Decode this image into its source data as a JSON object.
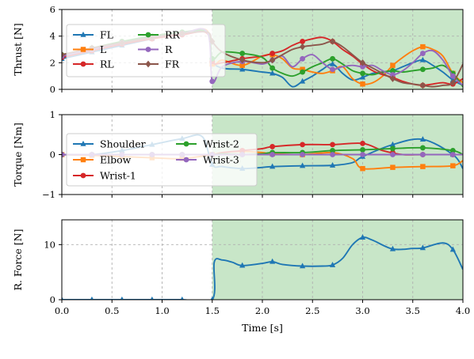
{
  "chart_data": [
    {
      "type": "line",
      "ylabel": "Thrust [N]",
      "xlim": [
        0,
        4
      ],
      "ylim": [
        0,
        6
      ],
      "yticks": [
        0,
        2,
        4,
        6
      ],
      "highlight_x": [
        1.5,
        4.0
      ],
      "highlight_color": "#c8e6c8",
      "legend_position": "upper-left",
      "legend_columns": 2,
      "series": [
        {
          "name": "FL",
          "color": "#1f77b4",
          "marker": "triangle",
          "x": [
            0,
            0.3,
            0.6,
            0.9,
            1.2,
            1.45,
            1.5,
            1.6,
            1.8,
            2.0,
            2.1,
            2.2,
            2.3,
            2.4,
            2.5,
            2.6,
            2.7,
            2.8,
            2.9,
            3.0,
            3.1,
            3.2,
            3.3,
            3.4,
            3.5,
            3.6,
            3.7,
            3.8,
            3.9,
            4.0
          ],
          "y": [
            2.3,
            2.8,
            3.3,
            3.8,
            4.2,
            4.3,
            2.2,
            1.6,
            1.5,
            1.3,
            1.2,
            0.9,
            0.2,
            0.6,
            1.0,
            1.5,
            1.9,
            1.2,
            0.7,
            0.9,
            1.2,
            1.3,
            1.4,
            1.7,
            2.0,
            2.2,
            1.8,
            1.3,
            0.7,
            0.3
          ]
        },
        {
          "name": "L",
          "color": "#ff7f0e",
          "marker": "square",
          "x": [
            0,
            0.3,
            0.6,
            0.9,
            1.2,
            1.45,
            1.5,
            1.6,
            1.8,
            2.0,
            2.1,
            2.2,
            2.3,
            2.4,
            2.5,
            2.6,
            2.7,
            2.8,
            2.9,
            3.0,
            3.1,
            3.2,
            3.3,
            3.4,
            3.5,
            3.6,
            3.7,
            3.8,
            3.9,
            4.0
          ],
          "y": [
            2.5,
            3.0,
            3.5,
            3.9,
            4.2,
            4.4,
            1.9,
            2.2,
            1.8,
            2.5,
            2.6,
            2.3,
            1.6,
            1.5,
            1.3,
            1.2,
            1.4,
            1.7,
            0.8,
            0.4,
            0.5,
            1.0,
            1.8,
            2.4,
            2.9,
            3.2,
            3.0,
            2.5,
            1.2,
            0.5
          ]
        },
        {
          "name": "RL",
          "color": "#d62728",
          "marker": "circle",
          "x": [
            0,
            0.3,
            0.6,
            0.9,
            1.2,
            1.45,
            1.5,
            1.6,
            1.8,
            2.0,
            2.1,
            2.2,
            2.3,
            2.4,
            2.5,
            2.6,
            2.7,
            2.8,
            2.9,
            3.0,
            3.1,
            3.2,
            3.3,
            3.4,
            3.5,
            3.6,
            3.7,
            3.8,
            3.9,
            4.0
          ],
          "y": [
            2.4,
            2.9,
            3.4,
            3.8,
            4.1,
            4.2,
            2.1,
            2.0,
            2.3,
            2.5,
            2.7,
            2.9,
            3.3,
            3.6,
            3.8,
            3.9,
            3.6,
            3.0,
            2.5,
            1.9,
            1.4,
            1.1,
            0.9,
            0.6,
            0.4,
            0.3,
            0.4,
            0.5,
            0.4,
            0.8
          ]
        },
        {
          "name": "RR",
          "color": "#2ca02c",
          "marker": "circle",
          "x": [
            0,
            0.3,
            0.6,
            0.9,
            1.2,
            1.45,
            1.5,
            1.6,
            1.8,
            2.0,
            2.1,
            2.2,
            2.3,
            2.4,
            2.5,
            2.6,
            2.7,
            2.8,
            2.9,
            3.0,
            3.1,
            3.2,
            3.3,
            3.4,
            3.5,
            3.6,
            3.7,
            3.8,
            3.9,
            4.0
          ],
          "y": [
            2.6,
            3.1,
            3.6,
            4.0,
            4.3,
            4.3,
            2.3,
            2.8,
            2.7,
            2.4,
            1.6,
            1.2,
            1.0,
            1.3,
            1.7,
            2.0,
            2.3,
            1.9,
            1.4,
            1.2,
            1.1,
            1.3,
            1.4,
            1.3,
            1.4,
            1.5,
            1.6,
            1.8,
            1.2,
            0.2
          ]
        },
        {
          "name": "R",
          "color": "#9467bd",
          "marker": "circle",
          "x": [
            0,
            0.3,
            0.6,
            0.9,
            1.2,
            1.45,
            1.5,
            1.6,
            1.8,
            2.0,
            2.1,
            2.2,
            2.3,
            2.4,
            2.5,
            2.6,
            2.7,
            2.8,
            2.9,
            3.0,
            3.1,
            3.2,
            3.3,
            3.4,
            3.5,
            3.6,
            3.7,
            3.8,
            3.9,
            4.0
          ],
          "y": [
            2.5,
            3.0,
            3.5,
            3.9,
            4.2,
            4.3,
            0.6,
            1.7,
            2.1,
            1.9,
            2.2,
            2.5,
            1.7,
            2.3,
            2.6,
            2.0,
            1.5,
            1.7,
            1.8,
            1.7,
            1.8,
            1.4,
            1.1,
            1.4,
            2.0,
            2.7,
            2.9,
            2.2,
            1.0,
            0.3
          ]
        },
        {
          "name": "FR",
          "color": "#8c564b",
          "marker": "diamond",
          "x": [
            0,
            0.3,
            0.6,
            0.9,
            1.2,
            1.45,
            1.5,
            1.6,
            1.8,
            2.0,
            2.1,
            2.2,
            2.3,
            2.4,
            2.5,
            2.6,
            2.7,
            2.8,
            2.9,
            3.0,
            3.1,
            3.2,
            3.3,
            3.4,
            3.5,
            3.6,
            3.7,
            3.8,
            3.9,
            4.0
          ],
          "y": [
            2.6,
            3.1,
            3.5,
            3.9,
            4.2,
            4.3,
            3.6,
            2.8,
            2.2,
            2.0,
            2.2,
            2.6,
            3.0,
            3.2,
            3.3,
            3.4,
            3.6,
            3.2,
            2.6,
            2.0,
            1.6,
            1.2,
            0.8,
            0.5,
            0.4,
            0.3,
            0.2,
            0.3,
            0.5,
            1.9
          ]
        }
      ]
    },
    {
      "type": "line",
      "ylabel": "Torque [Nm]",
      "xlim": [
        0,
        4
      ],
      "ylim": [
        -1,
        1
      ],
      "yticks": [
        -1,
        0,
        1
      ],
      "highlight_x": [
        1.5,
        4.0
      ],
      "highlight_color": "#c8e6c8",
      "legend_position": "center-left",
      "legend_columns": 2,
      "series": [
        {
          "name": "Shoulder",
          "color": "#1f77b4",
          "marker": "triangle",
          "x": [
            0,
            0.3,
            0.6,
            0.9,
            1.2,
            1.4,
            1.5,
            1.6,
            1.8,
            2.0,
            2.1,
            2.4,
            2.7,
            2.9,
            3.0,
            3.3,
            3.6,
            3.9,
            4.0
          ],
          "y": [
            0.0,
            0.0,
            0.1,
            0.25,
            0.4,
            0.45,
            -0.25,
            -0.3,
            -0.35,
            -0.32,
            -0.3,
            -0.28,
            -0.27,
            -0.2,
            -0.05,
            0.25,
            0.38,
            0.0,
            -0.35
          ]
        },
        {
          "name": "Elbow",
          "color": "#ff7f0e",
          "marker": "square",
          "x": [
            0,
            0.3,
            0.6,
            0.9,
            1.2,
            1.5,
            1.6,
            1.8,
            2.0,
            2.1,
            2.4,
            2.7,
            2.9,
            3.0,
            3.3,
            3.6,
            3.9,
            4.0
          ],
          "y": [
            0.0,
            -0.02,
            -0.05,
            -0.08,
            -0.1,
            0.0,
            0.05,
            0.08,
            0.05,
            0.02,
            0.0,
            0.05,
            -0.1,
            -0.35,
            -0.32,
            -0.3,
            -0.28,
            -0.15
          ]
        },
        {
          "name": "Wrist-1",
          "color": "#d62728",
          "marker": "circle",
          "x": [
            0,
            0.3,
            0.6,
            0.9,
            1.2,
            1.5,
            1.6,
            1.8,
            2.0,
            2.1,
            2.4,
            2.7,
            3.0,
            3.2,
            3.4,
            3.6,
            3.9,
            4.0
          ],
          "y": [
            0.0,
            0.0,
            0.0,
            0.0,
            0.0,
            0.0,
            0.05,
            0.1,
            0.15,
            0.2,
            0.25,
            0.25,
            0.28,
            0.1,
            0.0,
            0.0,
            0.0,
            0.0
          ]
        },
        {
          "name": "Wrist-2",
          "color": "#2ca02c",
          "marker": "circle",
          "x": [
            0,
            0.3,
            0.6,
            0.9,
            1.2,
            1.5,
            1.6,
            1.8,
            2.0,
            2.1,
            2.4,
            2.7,
            3.0,
            3.3,
            3.6,
            3.9,
            4.0
          ],
          "y": [
            0.0,
            0.0,
            0.0,
            0.0,
            0.0,
            0.0,
            0.02,
            0.0,
            0.02,
            0.05,
            0.05,
            0.1,
            0.12,
            0.15,
            0.17,
            0.1,
            0.0
          ]
        },
        {
          "name": "Wrist-3",
          "color": "#9467bd",
          "marker": "circle",
          "x": [
            0,
            0.3,
            0.6,
            0.9,
            1.2,
            1.5,
            1.8,
            2.1,
            2.4,
            2.7,
            3.0,
            3.3,
            3.6,
            3.9,
            4.0
          ],
          "y": [
            0.0,
            0.0,
            0.0,
            0.0,
            0.0,
            0.0,
            0.0,
            0.0,
            0.0,
            0.0,
            0.0,
            0.0,
            0.0,
            0.0,
            0.0
          ]
        }
      ]
    },
    {
      "type": "line",
      "ylabel": "R. Force [N]",
      "xlabel": "Time [s]",
      "xlim": [
        0,
        4
      ],
      "ylim": [
        0,
        14.5
      ],
      "yticks": [
        0,
        10
      ],
      "xticks": [
        0.0,
        0.5,
        1.0,
        1.5,
        2.0,
        2.5,
        3.0,
        3.5,
        4.0
      ],
      "xticklabels": [
        "0.0",
        "0.5",
        "1.0",
        "1.5",
        "2.0",
        "2.5",
        "3.0",
        "3.5",
        "4.0"
      ],
      "highlight_x": [
        1.5,
        4.0
      ],
      "highlight_color": "#c8e6c8",
      "series": [
        {
          "color": "#1f77b4",
          "marker": "triangle",
          "x": [
            0,
            0.3,
            0.6,
            0.9,
            1.2,
            1.5,
            1.52,
            1.6,
            1.7,
            1.8,
            2.0,
            2.1,
            2.2,
            2.4,
            2.6,
            2.7,
            2.8,
            2.9,
            3.0,
            3.1,
            3.3,
            3.5,
            3.6,
            3.8,
            3.9,
            4.0
          ],
          "y": [
            0,
            0,
            0,
            0,
            0,
            0,
            6.8,
            7.2,
            6.8,
            6.2,
            6.6,
            6.9,
            6.4,
            6.1,
            6.1,
            6.3,
            7.5,
            10.0,
            11.3,
            10.8,
            9.2,
            9.3,
            9.4,
            10.3,
            9.1,
            5.5
          ]
        }
      ]
    }
  ]
}
